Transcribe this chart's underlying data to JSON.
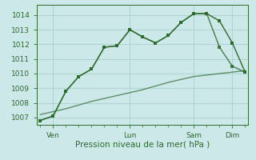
{
  "background_color": "#cce8e8",
  "grid_color": "#aacfcf",
  "line_color": "#2d6a2d",
  "xlabel": "Pression niveau de la mer( hPa )",
  "ylim": [
    1006.5,
    1014.7
  ],
  "yticks": [
    1007,
    1008,
    1009,
    1010,
    1011,
    1012,
    1013,
    1014
  ],
  "xtick_labels": [
    "Ven",
    "Lun",
    "Sam",
    "Dim"
  ],
  "xtick_positions": [
    2,
    14,
    24,
    30
  ],
  "total_points": 33,
  "series1_x": [
    0,
    2,
    4,
    6,
    8,
    10,
    12,
    14,
    16,
    18,
    20,
    22,
    24,
    26,
    28,
    30,
    32
  ],
  "series1_y": [
    1006.8,
    1007.1,
    1008.8,
    1009.8,
    1010.3,
    1011.8,
    1011.9,
    1013.0,
    1012.5,
    1012.1,
    1012.6,
    1013.5,
    1014.1,
    1014.1,
    1013.6,
    1012.1,
    1010.1
  ],
  "series2_x": [
    0,
    2,
    4,
    6,
    8,
    10,
    12,
    14,
    16,
    18,
    20,
    22,
    24,
    26,
    28,
    30,
    32
  ],
  "series2_y": [
    1006.8,
    1007.1,
    1008.8,
    1009.8,
    1010.3,
    1011.8,
    1011.9,
    1013.0,
    1012.5,
    1012.1,
    1012.6,
    1013.5,
    1014.1,
    1014.1,
    1011.8,
    1010.5,
    1010.1
  ],
  "series3_x": [
    0,
    4,
    8,
    12,
    16,
    20,
    24,
    28,
    32
  ],
  "series3_y": [
    1007.2,
    1007.6,
    1008.1,
    1008.5,
    1008.9,
    1009.4,
    1009.8,
    1010.0,
    1010.2
  ],
  "figsize": [
    3.2,
    2.0
  ],
  "dpi": 100
}
